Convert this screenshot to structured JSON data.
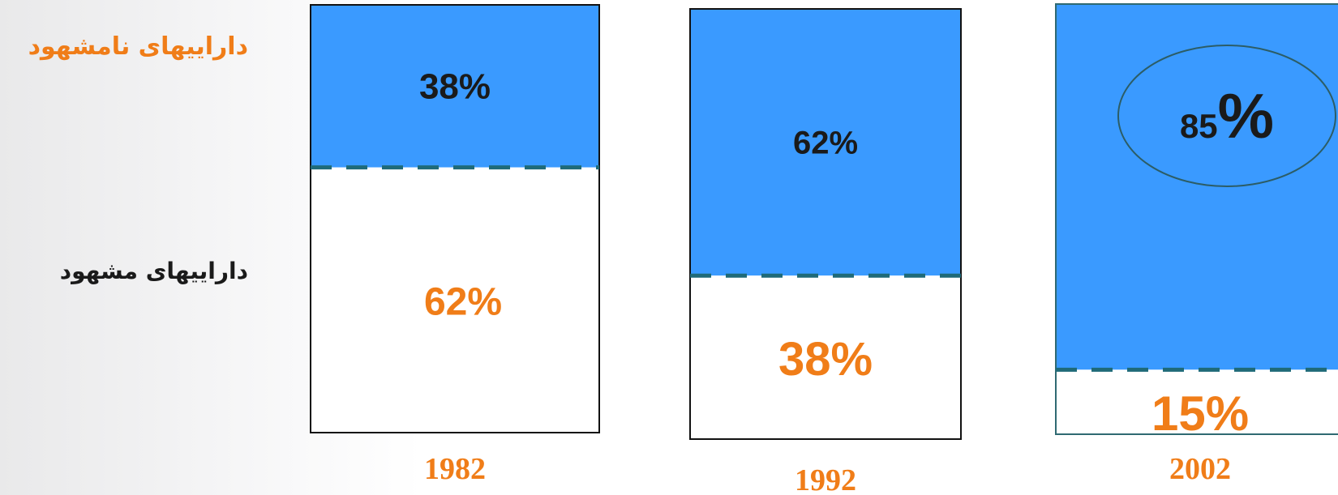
{
  "legend": {
    "intangible_label": "داراییهای نامشهود",
    "tangible_label": "داراییهای مشهود"
  },
  "colors": {
    "intangible": "#3a9aff",
    "tangible": "#ffffff",
    "accent_orange": "#f07d18",
    "label_dark": "#1a1a1a",
    "divider": "#1f6a78"
  },
  "chart_data": {
    "type": "bar",
    "stacked": true,
    "categories": [
      "1982",
      "1992",
      "2002"
    ],
    "series": [
      {
        "name": "داراییهای نامشهود",
        "values": [
          38,
          62,
          85
        ],
        "labels": [
          "38%",
          "62%",
          "85%"
        ]
      },
      {
        "name": "داراییهای مشهود",
        "values": [
          62,
          38,
          15
        ],
        "labels": [
          "62%",
          "38%",
          "15%"
        ]
      }
    ],
    "ylim": [
      0,
      100
    ],
    "unit": "%",
    "highlight": "2002 intangible value circled",
    "title": "",
    "xlabel": "",
    "ylabel": ""
  }
}
